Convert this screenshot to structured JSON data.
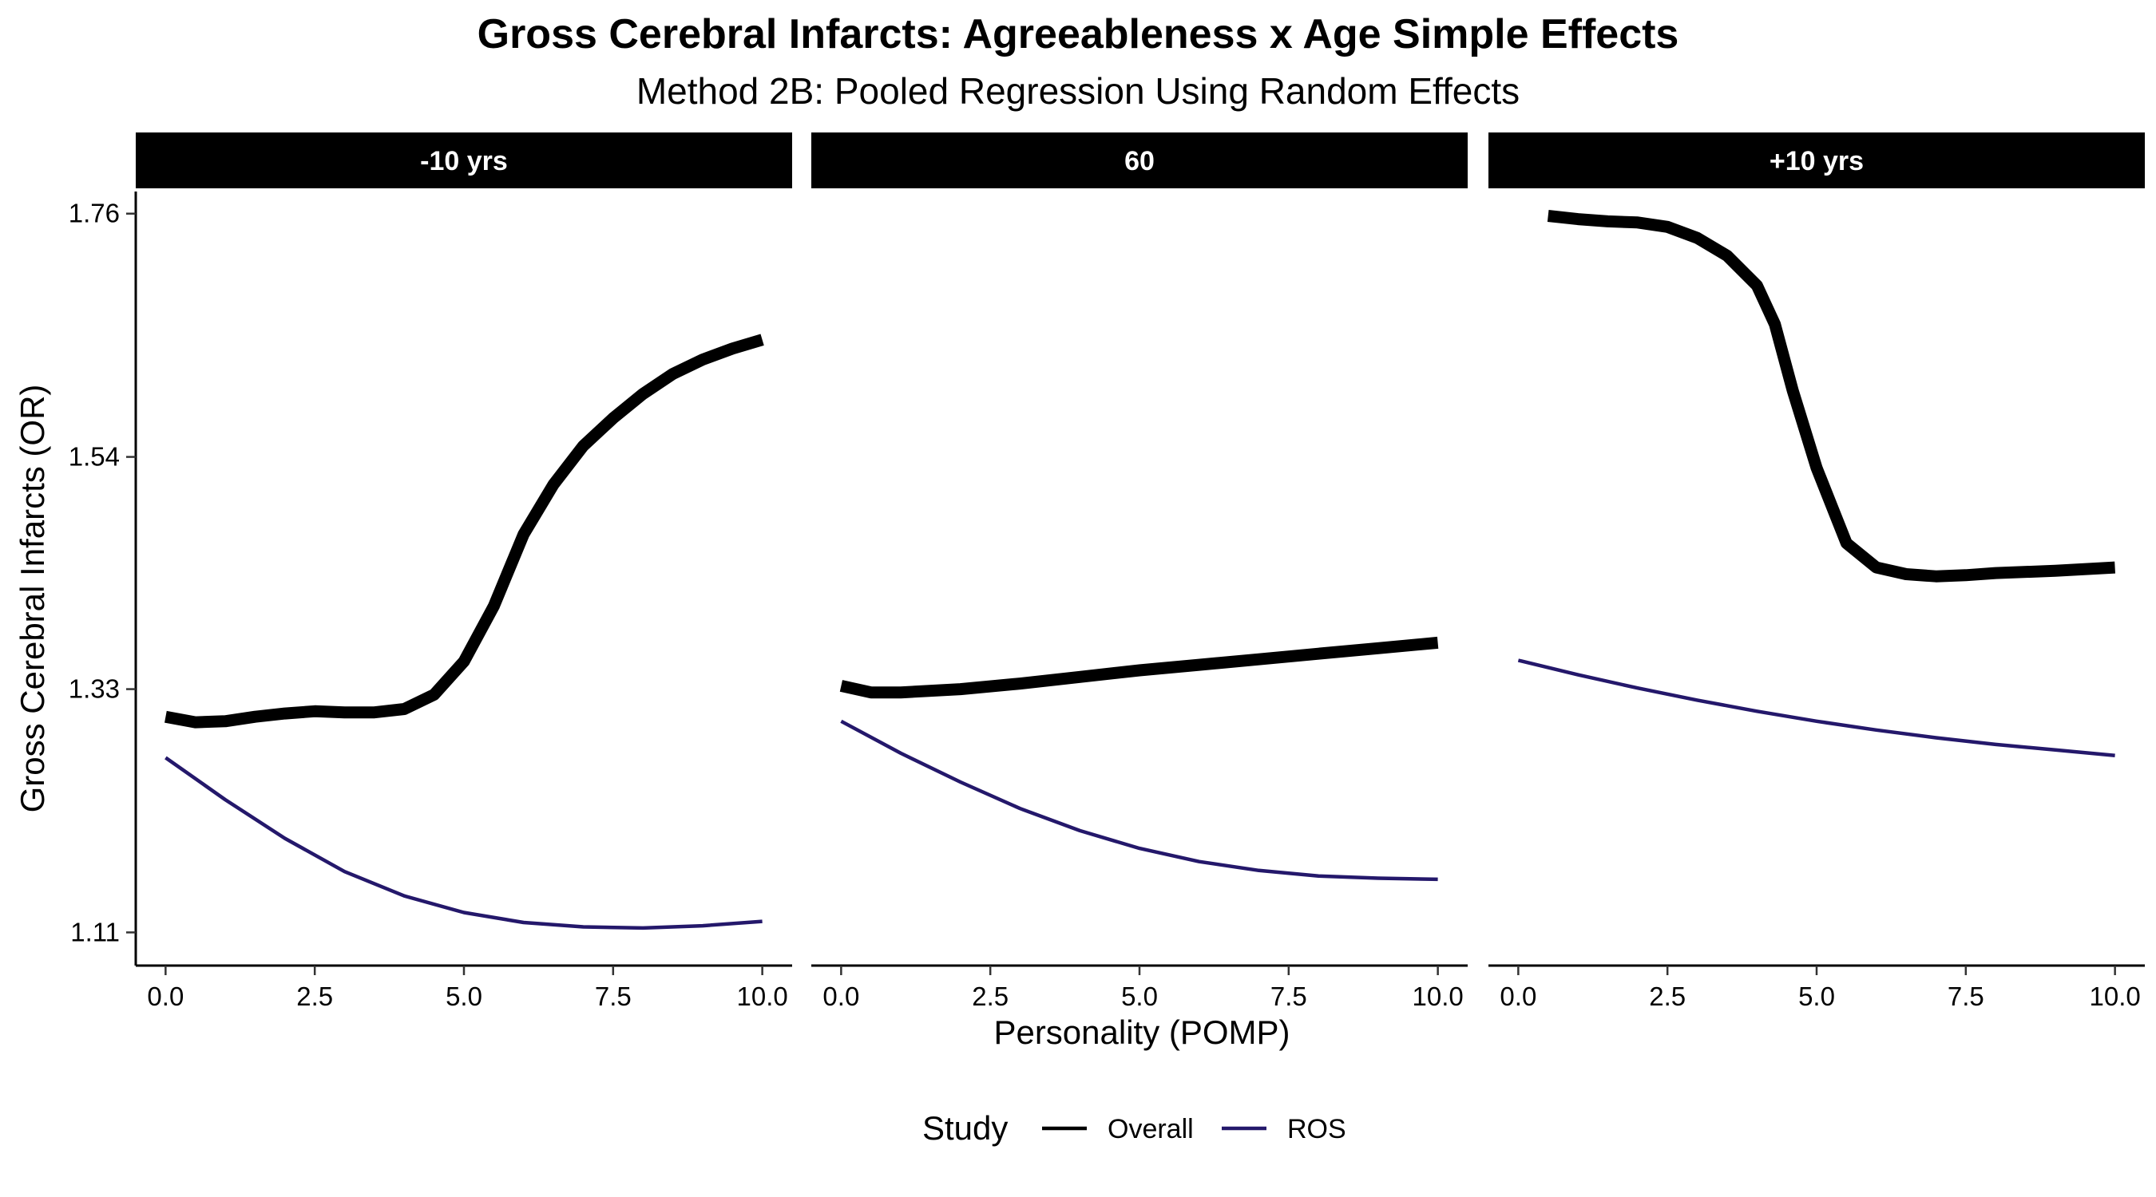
{
  "chart_data": {
    "type": "line",
    "title": "Gross Cerebral Infarcts: Agreeableness x Age Simple Effects",
    "subtitle": "Method 2B: Pooled Regression Using Random Effects",
    "xlabel": "Personality (POMP)",
    "ylabel": "Gross Cerebral Infarcts (OR)",
    "xlim": [
      -0.5,
      10.5
    ],
    "ylim": [
      1.08,
      1.78
    ],
    "x_ticks": [
      0,
      2.5,
      5,
      7.5,
      10
    ],
    "x_tick_labels": [
      "0.0",
      "2.5",
      "5.0",
      "7.5",
      "10.0"
    ],
    "y_ticks": [
      1.11,
      1.33,
      1.54,
      1.76
    ],
    "y_tick_labels": [
      "1.11",
      "1.33",
      "1.54",
      "1.76"
    ],
    "legend": {
      "title": "Study",
      "position": "bottom",
      "entries": [
        {
          "name": "Overall",
          "color": "#000000"
        },
        {
          "name": "ROS",
          "color": "#24186b"
        }
      ]
    },
    "panels": [
      {
        "label": "-10 yrs",
        "series": [
          {
            "name": "Overall",
            "color": "#000000",
            "width": "thick",
            "points": [
              [
                0,
                1.305
              ],
              [
                0.5,
                1.3
              ],
              [
                1,
                1.301
              ],
              [
                1.5,
                1.305
              ],
              [
                2,
                1.308
              ],
              [
                2.5,
                1.31
              ],
              [
                3,
                1.309
              ],
              [
                3.5,
                1.309
              ],
              [
                4,
                1.312
              ],
              [
                4.5,
                1.325
              ],
              [
                5,
                1.355
              ],
              [
                5.5,
                1.405
              ],
              [
                6,
                1.47
              ],
              [
                6.5,
                1.515
              ],
              [
                7,
                1.55
              ],
              [
                7.5,
                1.575
              ],
              [
                8,
                1.597
              ],
              [
                8.5,
                1.615
              ],
              [
                9,
                1.628
              ],
              [
                9.5,
                1.638
              ],
              [
                10,
                1.646
              ]
            ]
          },
          {
            "name": "ROS",
            "color": "#24186b",
            "width": "thin",
            "points": [
              [
                0,
                1.268
              ],
              [
                1,
                1.23
              ],
              [
                2,
                1.195
              ],
              [
                3,
                1.165
              ],
              [
                4,
                1.143
              ],
              [
                5,
                1.128
              ],
              [
                6,
                1.119
              ],
              [
                7,
                1.115
              ],
              [
                8,
                1.114
              ],
              [
                9,
                1.116
              ],
              [
                10,
                1.12
              ]
            ]
          }
        ]
      },
      {
        "label": "60",
        "series": [
          {
            "name": "Overall",
            "color": "#000000",
            "width": "thick",
            "points": [
              [
                0,
                1.333
              ],
              [
                0.5,
                1.327
              ],
              [
                1,
                1.327
              ],
              [
                2,
                1.33
              ],
              [
                3,
                1.335
              ],
              [
                4,
                1.341
              ],
              [
                5,
                1.347
              ],
              [
                6,
                1.352
              ],
              [
                7,
                1.357
              ],
              [
                8,
                1.362
              ],
              [
                9,
                1.367
              ],
              [
                10,
                1.372
              ]
            ]
          },
          {
            "name": "ROS",
            "color": "#24186b",
            "width": "thin",
            "points": [
              [
                0,
                1.301
              ],
              [
                1,
                1.272
              ],
              [
                2,
                1.246
              ],
              [
                3,
                1.222
              ],
              [
                4,
                1.202
              ],
              [
                5,
                1.186
              ],
              [
                6,
                1.174
              ],
              [
                7,
                1.166
              ],
              [
                8,
                1.161
              ],
              [
                9,
                1.159
              ],
              [
                10,
                1.158
              ]
            ]
          }
        ]
      },
      {
        "label": "+10 yrs",
        "series": [
          {
            "name": "Overall",
            "color": "#000000",
            "width": "thick",
            "points": [
              [
                0.5,
                1.758
              ],
              [
                1,
                1.755
              ],
              [
                1.5,
                1.753
              ],
              [
                2,
                1.752
              ],
              [
                2.5,
                1.748
              ],
              [
                3,
                1.738
              ],
              [
                3.5,
                1.722
              ],
              [
                4,
                1.695
              ],
              [
                4.3,
                1.66
              ],
              [
                4.6,
                1.6
              ],
              [
                5,
                1.53
              ],
              [
                5.5,
                1.462
              ],
              [
                6,
                1.44
              ],
              [
                6.5,
                1.434
              ],
              [
                7,
                1.432
              ],
              [
                7.5,
                1.433
              ],
              [
                8,
                1.435
              ],
              [
                9,
                1.437
              ],
              [
                10,
                1.44
              ]
            ]
          },
          {
            "name": "ROS",
            "color": "#24186b",
            "width": "thin",
            "points": [
              [
                0,
                1.356
              ],
              [
                1,
                1.343
              ],
              [
                2,
                1.331
              ],
              [
                3,
                1.32
              ],
              [
                4,
                1.31
              ],
              [
                5,
                1.301
              ],
              [
                6,
                1.293
              ],
              [
                7,
                1.286
              ],
              [
                8,
                1.28
              ],
              [
                9,
                1.275
              ],
              [
                10,
                1.27
              ]
            ]
          }
        ]
      }
    ]
  }
}
